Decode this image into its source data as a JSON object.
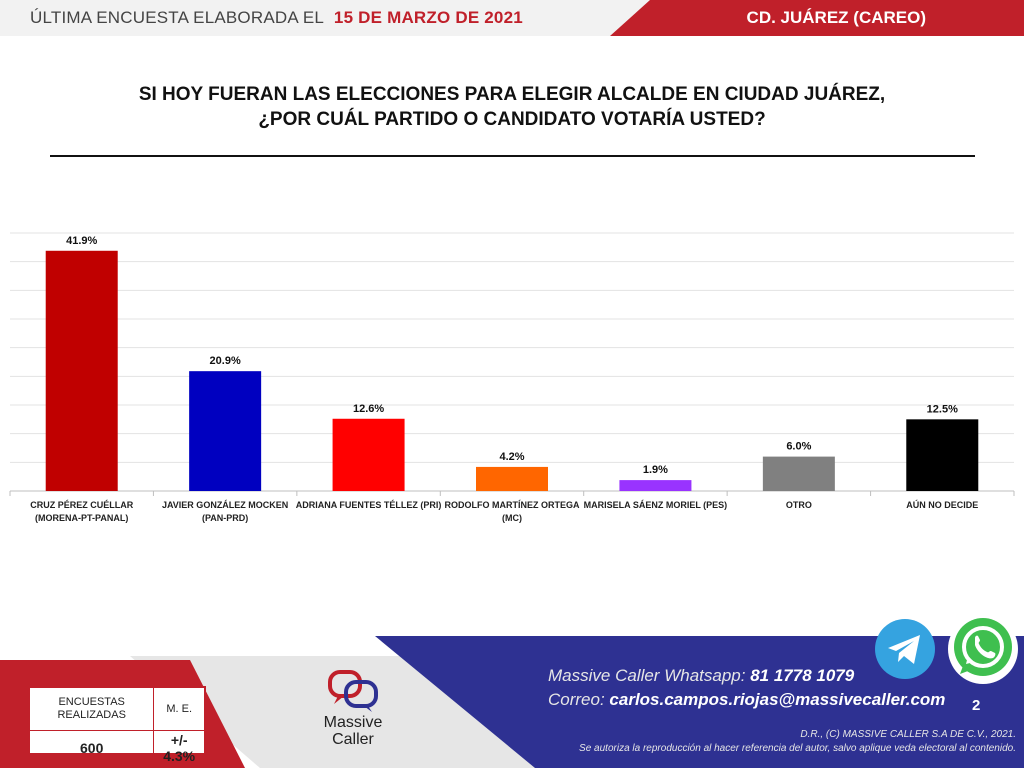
{
  "header": {
    "survey_label": "ÚLTIMA ENCUESTA ELABORADA EL",
    "survey_date": "15 DE MARZO DE 2021",
    "region": "CD. JUÁREZ (CAREO)"
  },
  "question": {
    "line1": "SI HOY FUERAN LAS ELECCIONES PARA ELEGIR ALCALDE EN CIUDAD JUÁREZ,",
    "line2": "¿POR CUÁL PARTIDO O CANDIDATO VOTARÍA USTED?"
  },
  "chart_data": {
    "type": "bar",
    "categories": [
      [
        "CRUZ PÉREZ CUÉLLAR",
        "(MORENA-PT-PANAL)"
      ],
      [
        "JAVIER GONZÁLEZ MOCKEN",
        "(PAN-PRD)"
      ],
      [
        "ADRIANA FUENTES TÉLLEZ (PRI)"
      ],
      [
        "RODOLFO MARTÍNEZ ORTEGA",
        "(MC)"
      ],
      [
        "MARISELA SÁENZ MORIEL (PES)"
      ],
      [
        "OTRO"
      ],
      [
        "AÚN NO DECIDE"
      ]
    ],
    "values": [
      41.9,
      20.9,
      12.6,
      4.2,
      1.9,
      6.0,
      12.5
    ],
    "labels": [
      "41.9%",
      "20.9%",
      "12.6%",
      "4.2%",
      "1.9%",
      "6.0%",
      "12.5%"
    ],
    "colors": [
      "#c00000",
      "#0000c0",
      "#ff0000",
      "#ff6600",
      "#9933ff",
      "#808080",
      "#000000"
    ],
    "ylim": [
      0,
      45
    ],
    "grid": true
  },
  "stats": {
    "surveys_label": "ENCUESTAS REALIZADAS",
    "me_label": "M. E.",
    "surveys_value": "600",
    "me_value": "+/- 4.3%"
  },
  "logo": {
    "name_line1": "Massive",
    "name_line2": "Caller"
  },
  "contact": {
    "whatsapp_label": "Massive Caller Whatsapp:",
    "whatsapp_number": "81 1778 1079",
    "email_label": "Correo:",
    "email": "carlos.campos.riojas@massivecaller.com"
  },
  "page_number": "2",
  "legal": {
    "line1": "D.R., (C) MASSIVE CALLER S.A DE C.V., 2021.",
    "line2": "Se autoriza la reproducción al hacer referencia del autor, salvo aplique veda electoral al contenido."
  },
  "icons": {
    "telegram": "telegram-icon",
    "whatsapp": "whatsapp-icon"
  }
}
